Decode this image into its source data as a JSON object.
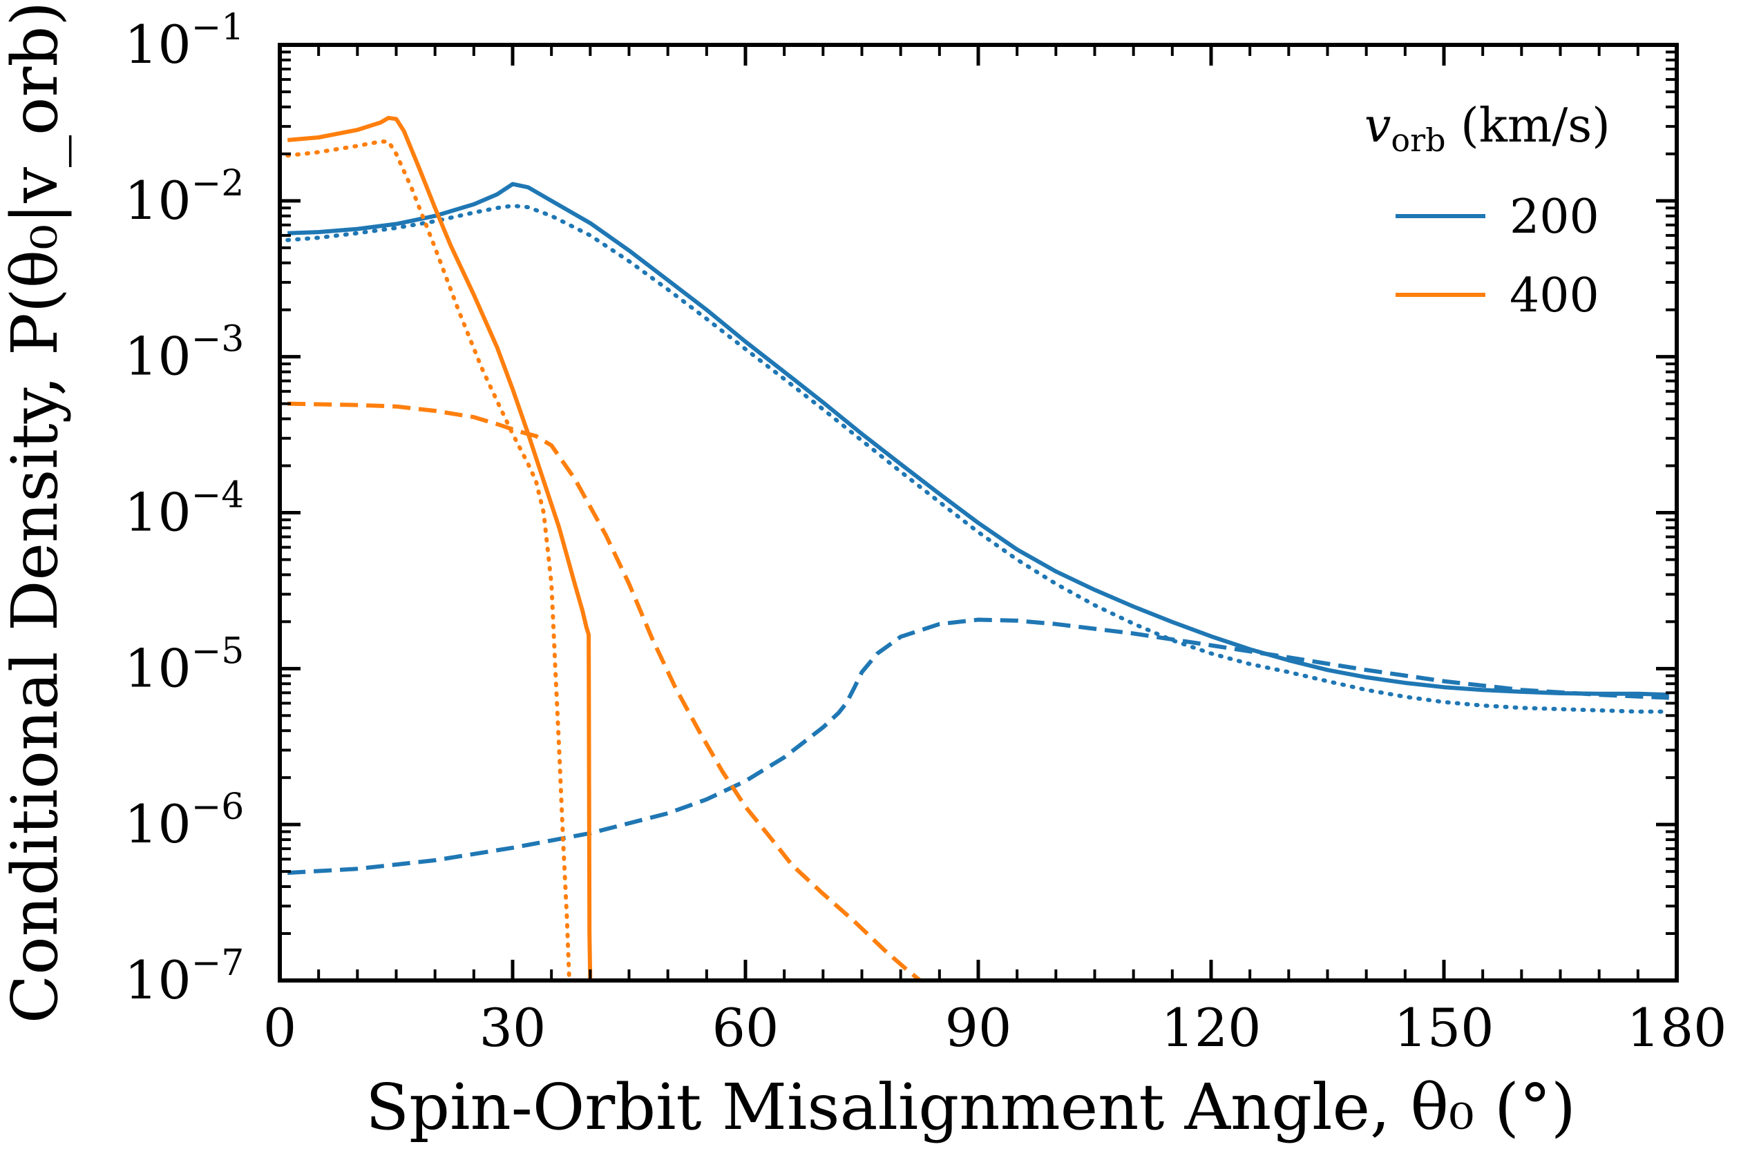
{
  "chart_data": {
    "type": "line",
    "xlabel": "Spin-Orbit Misalignment Angle,  θ₀ (°)",
    "ylabel": "Conditional Density,  P(θ₀|v_orb)",
    "xlim": [
      0,
      180
    ],
    "ylim": [
      1e-07,
      0.1
    ],
    "yscale": "log",
    "x_ticks": [
      0,
      30,
      60,
      90,
      120,
      150,
      180
    ],
    "x_tick_labels": [
      "0",
      "30",
      "60",
      "90",
      "120",
      "150",
      "180"
    ],
    "y_ticks": [
      1e-07,
      1e-06,
      1e-05,
      0.0001,
      0.001,
      0.01,
      0.1
    ],
    "y_tick_labels": [
      {
        "base": "10",
        "exp": "−7"
      },
      {
        "base": "10",
        "exp": "−6"
      },
      {
        "base": "10",
        "exp": "−5"
      },
      {
        "base": "10",
        "exp": "−4"
      },
      {
        "base": "10",
        "exp": "−3"
      },
      {
        "base": "10",
        "exp": "−2"
      },
      {
        "base": "10",
        "exp": "−1"
      }
    ],
    "grid": false,
    "legend": {
      "title": "v_orb (km/s)",
      "title_var": "v",
      "title_sub": "orb",
      "title_unit": " (km/s)",
      "position": "top-right",
      "entries": [
        {
          "label": "200",
          "color": "#1f77b4"
        },
        {
          "label": "400",
          "color": "#ff7f0e"
        }
      ]
    },
    "series": [
      {
        "name": "200 total",
        "color": "#1f77b4",
        "style": "solid",
        "points": [
          [
            1,
            0.0062
          ],
          [
            5,
            0.0063
          ],
          [
            10,
            0.0066
          ],
          [
            15,
            0.0071
          ],
          [
            20,
            0.008
          ],
          [
            25,
            0.0095
          ],
          [
            28,
            0.011
          ],
          [
            30,
            0.0128
          ],
          [
            32,
            0.0122
          ],
          [
            35,
            0.01
          ],
          [
            40,
            0.0072
          ],
          [
            45,
            0.0048
          ],
          [
            50,
            0.0031
          ],
          [
            55,
            0.002
          ],
          [
            60,
            0.00125
          ],
          [
            65,
            0.0008
          ],
          [
            70,
            0.00051
          ],
          [
            75,
            0.00032
          ],
          [
            80,
            0.000205
          ],
          [
            85,
            0.000132
          ],
          [
            90,
            8.6e-05
          ],
          [
            95,
            5.8e-05
          ],
          [
            100,
            4.2e-05
          ],
          [
            105,
            3.2e-05
          ],
          [
            110,
            2.5e-05
          ],
          [
            115,
            1.99e-05
          ],
          [
            120,
            1.61e-05
          ],
          [
            125,
            1.33e-05
          ],
          [
            130,
            1.13e-05
          ],
          [
            135,
            9.8e-06
          ],
          [
            140,
            8.8e-06
          ],
          [
            145,
            8.1e-06
          ],
          [
            150,
            7.6e-06
          ],
          [
            155,
            7.3e-06
          ],
          [
            160,
            7.1e-06
          ],
          [
            165,
            6.95e-06
          ],
          [
            170,
            6.9e-06
          ],
          [
            175,
            6.9e-06
          ],
          [
            179,
            6.8e-06
          ]
        ]
      },
      {
        "name": "200 dotted",
        "color": "#1f77b4",
        "style": "dotted",
        "points": [
          [
            1,
            0.0056
          ],
          [
            5,
            0.0058
          ],
          [
            10,
            0.0062
          ],
          [
            15,
            0.0067
          ],
          [
            20,
            0.0074
          ],
          [
            25,
            0.0084
          ],
          [
            28,
            0.009
          ],
          [
            30,
            0.0093
          ],
          [
            32,
            0.0091
          ],
          [
            35,
            0.008
          ],
          [
            40,
            0.006
          ],
          [
            45,
            0.0041
          ],
          [
            50,
            0.0027
          ],
          [
            55,
            0.00175
          ],
          [
            60,
            0.00112
          ],
          [
            65,
            0.00072
          ],
          [
            70,
            0.00046
          ],
          [
            75,
            0.00029
          ],
          [
            80,
            0.000183
          ],
          [
            85,
            0.000117
          ],
          [
            90,
            7.5e-05
          ],
          [
            95,
            5e-05
          ],
          [
            100,
            3.5e-05
          ],
          [
            105,
            2.55e-05
          ],
          [
            110,
            1.94e-05
          ],
          [
            115,
            1.52e-05
          ],
          [
            120,
            1.25e-05
          ],
          [
            125,
            1.07e-05
          ],
          [
            130,
            9.5e-06
          ],
          [
            135,
            8.3e-06
          ],
          [
            140,
            7.3e-06
          ],
          [
            145,
            6.6e-06
          ],
          [
            150,
            6.1e-06
          ],
          [
            155,
            5.8e-06
          ],
          [
            160,
            5.6e-06
          ],
          [
            165,
            5.5e-06
          ],
          [
            170,
            5.4e-06
          ],
          [
            175,
            5.3e-06
          ],
          [
            179,
            5.3e-06
          ]
        ]
      },
      {
        "name": "200 dashed",
        "color": "#1f77b4",
        "style": "dashed",
        "points": [
          [
            1,
            4.9e-07
          ],
          [
            10,
            5.2e-07
          ],
          [
            20,
            5.9e-07
          ],
          [
            30,
            7.1e-07
          ],
          [
            40,
            8.8e-07
          ],
          [
            50,
            1.18e-06
          ],
          [
            55,
            1.45e-06
          ],
          [
            60,
            1.9e-06
          ],
          [
            65,
            2.7e-06
          ],
          [
            70,
            4.2e-06
          ],
          [
            72,
            5.2e-06
          ],
          [
            73,
            6e-06
          ],
          [
            74,
            7.5e-06
          ],
          [
            75,
            9.5e-06
          ],
          [
            77,
            1.25e-05
          ],
          [
            80,
            1.6e-05
          ],
          [
            85,
            1.93e-05
          ],
          [
            90,
            2.06e-05
          ],
          [
            95,
            2.03e-05
          ],
          [
            100,
            1.93e-05
          ],
          [
            110,
            1.68e-05
          ],
          [
            120,
            1.41e-05
          ],
          [
            130,
            1.18e-05
          ],
          [
            140,
            9.8e-06
          ],
          [
            150,
            8.3e-06
          ],
          [
            160,
            7.3e-06
          ],
          [
            170,
            6.8e-06
          ],
          [
            179,
            6.5e-06
          ]
        ]
      },
      {
        "name": "400 total",
        "color": "#ff7f0e",
        "style": "solid",
        "points": [
          [
            1,
            0.0245
          ],
          [
            5,
            0.0255
          ],
          [
            10,
            0.0285
          ],
          [
            13,
            0.0318
          ],
          [
            14,
            0.034
          ],
          [
            15,
            0.0335
          ],
          [
            16,
            0.028
          ],
          [
            18,
            0.016
          ],
          [
            20,
            0.009
          ],
          [
            22,
            0.0052
          ],
          [
            25,
            0.0025
          ],
          [
            28,
            0.00115
          ],
          [
            30,
            0.00062
          ],
          [
            32,
            0.00032
          ],
          [
            34,
            0.00016
          ],
          [
            36,
            8e-05
          ],
          [
            38,
            3.5e-05
          ],
          [
            39,
            2.35e-05
          ],
          [
            39.5,
            1.85e-05
          ],
          [
            39.8,
            1.65e-05
          ],
          [
            39.9,
            2e-07
          ],
          [
            40,
            1e-07
          ]
        ]
      },
      {
        "name": "400 dotted",
        "color": "#ff7f0e",
        "style": "dotted",
        "points": [
          [
            1,
            0.0195
          ],
          [
            5,
            0.0205
          ],
          [
            10,
            0.0225
          ],
          [
            13,
            0.024
          ],
          [
            14,
            0.024
          ],
          [
            15,
            0.02
          ],
          [
            17,
            0.012
          ],
          [
            20,
            0.005
          ],
          [
            23,
            0.002
          ],
          [
            26,
            0.00085
          ],
          [
            28,
            0.00052
          ],
          [
            30,
            0.00032
          ],
          [
            32,
            0.000205
          ],
          [
            33,
            0.00016
          ],
          [
            34,
            0.0001
          ],
          [
            35,
            3.5e-05
          ],
          [
            35.5,
            1e-05
          ],
          [
            36,
            3e-06
          ],
          [
            36.5,
            8e-07
          ],
          [
            37,
            2.5e-07
          ],
          [
            37.3,
            1e-07
          ]
        ]
      },
      {
        "name": "400 dashed",
        "color": "#ff7f0e",
        "style": "dashed",
        "points": [
          [
            1,
            0.0005
          ],
          [
            10,
            0.00049
          ],
          [
            15,
            0.00048
          ],
          [
            20,
            0.00045
          ],
          [
            25,
            0.00041
          ],
          [
            28,
            0.00037
          ],
          [
            31,
            0.00033
          ],
          [
            33,
            0.00031
          ],
          [
            35,
            0.00027
          ],
          [
            38,
            0.000165
          ],
          [
            42,
            7.2e-05
          ],
          [
            45,
            3.5e-05
          ],
          [
            48,
            1.55e-05
          ],
          [
            51,
            7.5e-06
          ],
          [
            54,
            4e-06
          ],
          [
            57,
            2.2e-06
          ],
          [
            60,
            1.3e-06
          ],
          [
            63,
            8.5e-07
          ],
          [
            66,
            5.5e-07
          ],
          [
            70,
            3.6e-07
          ],
          [
            74,
            2.4e-07
          ],
          [
            78,
            1.55e-07
          ],
          [
            81,
            1.15e-07
          ],
          [
            82.5,
            1e-07
          ]
        ]
      }
    ]
  }
}
